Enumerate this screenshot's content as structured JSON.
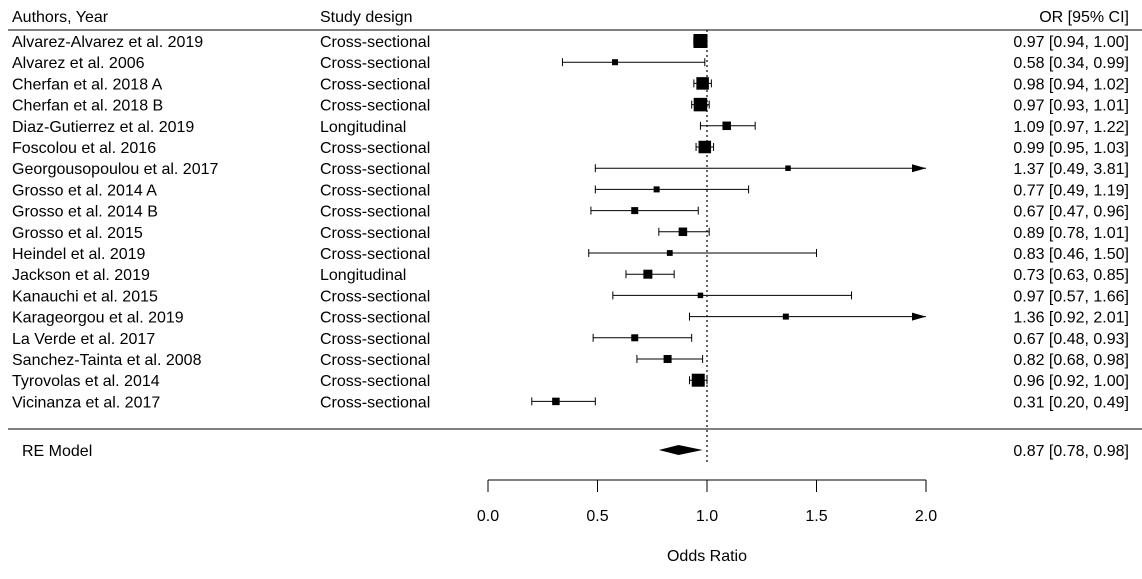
{
  "chart_data": {
    "type": "forest",
    "header": {
      "author": "Authors, Year",
      "design": "Study design",
      "or": "OR [95% CI]"
    },
    "studies": [
      {
        "author": "Alvarez-Alvarez et al. 2019",
        "design": "Cross-sectional",
        "or": 0.97,
        "lo": 0.94,
        "hi": 1.0,
        "ci_text": "0.97 [0.94, 1.00]",
        "weight": 1.0
      },
      {
        "author": "Alvarez et al. 2006",
        "design": "Cross-sectional",
        "or": 0.58,
        "lo": 0.34,
        "hi": 0.99,
        "ci_text": "0.58 [0.34, 0.99]",
        "weight": 0.2
      },
      {
        "author": "Cherfan et al. 2018 A",
        "design": "Cross-sectional",
        "or": 0.98,
        "lo": 0.94,
        "hi": 1.02,
        "ci_text": "0.98 [0.94, 1.02]",
        "weight": 0.85
      },
      {
        "author": "Cherfan et al. 2018 B",
        "design": "Cross-sectional",
        "or": 0.97,
        "lo": 0.93,
        "hi": 1.01,
        "ci_text": "0.97 [0.93, 1.01]",
        "weight": 0.95
      },
      {
        "author": "Diaz-Gutierrez et al. 2019",
        "design": "Longitudinal",
        "or": 1.09,
        "lo": 0.97,
        "hi": 1.22,
        "ci_text": "1.09 [0.97, 1.22]",
        "weight": 0.45
      },
      {
        "author": "Foscolou et al. 2016",
        "design": "Cross-sectional",
        "or": 0.99,
        "lo": 0.95,
        "hi": 1.03,
        "ci_text": "0.99 [0.95, 1.03]",
        "weight": 0.85
      },
      {
        "author": "Georgousopoulou et al. 2017",
        "design": "Cross-sectional",
        "or": 1.37,
        "lo": 0.49,
        "hi": 3.81,
        "ci_text": "1.37 [0.49, 3.81]",
        "weight": 0.15,
        "arrow": true
      },
      {
        "author": "Grosso et al. 2014 A",
        "design": "Cross-sectional",
        "or": 0.77,
        "lo": 0.49,
        "hi": 1.19,
        "ci_text": "0.77 [0.49, 1.19]",
        "weight": 0.2
      },
      {
        "author": "Grosso et al. 2014 B",
        "design": "Cross-sectional",
        "or": 0.67,
        "lo": 0.47,
        "hi": 0.96,
        "ci_text": "0.67 [0.47, 0.96]",
        "weight": 0.3
      },
      {
        "author": "Grosso et al. 2015",
        "design": "Cross-sectional",
        "or": 0.89,
        "lo": 0.78,
        "hi": 1.01,
        "ci_text": "0.89 [0.78, 1.01]",
        "weight": 0.45
      },
      {
        "author": "Heindel et al. 2019",
        "design": "Cross-sectional",
        "or": 0.83,
        "lo": 0.46,
        "hi": 1.5,
        "ci_text": "0.83 [0.46, 1.50]",
        "weight": 0.18
      },
      {
        "author": "Jackson et al. 2019",
        "design": "Longitudinal",
        "or": 0.73,
        "lo": 0.63,
        "hi": 0.85,
        "ci_text": "0.73 [0.63, 0.85]",
        "weight": 0.5
      },
      {
        "author": "Kanauchi et al. 2015",
        "design": "Cross-sectional",
        "or": 0.97,
        "lo": 0.57,
        "hi": 1.66,
        "ci_text": "0.97 [0.57, 1.66]",
        "weight": 0.15
      },
      {
        "author": "Karageorgou et al. 2019",
        "design": "Cross-sectional",
        "or": 1.36,
        "lo": 0.92,
        "hi": 2.01,
        "ci_text": "1.36 [0.92, 2.01]",
        "weight": 0.2,
        "arrow": true
      },
      {
        "author": "La Verde et al. 2017",
        "design": "Cross-sectional",
        "or": 0.67,
        "lo": 0.48,
        "hi": 0.93,
        "ci_text": "0.67 [0.48, 0.93]",
        "weight": 0.3
      },
      {
        "author": "Sanchez-Tainta et al. 2008",
        "design": "Cross-sectional",
        "or": 0.82,
        "lo": 0.68,
        "hi": 0.98,
        "ci_text": "0.82 [0.68, 0.98]",
        "weight": 0.4
      },
      {
        "author": "Tyrovolas et al. 2014",
        "design": "Cross-sectional",
        "or": 0.96,
        "lo": 0.92,
        "hi": 1.0,
        "ci_text": "0.96 [0.92, 1.00]",
        "weight": 0.9
      },
      {
        "author": "Vicinanza et al. 2017",
        "design": "Cross-sectional",
        "or": 0.31,
        "lo": 0.2,
        "hi": 0.49,
        "ci_text": "0.31 [0.20, 0.49]",
        "weight": 0.35
      }
    ],
    "summary": {
      "label": "RE Model",
      "or": 0.87,
      "lo": 0.78,
      "hi": 0.98,
      "ci_text": "0.87 [0.78, 0.98]"
    },
    "xlabel": "Odds Ratio",
    "xlim": [
      0.0,
      2.0
    ],
    "xticks": [
      "0.0",
      "0.5",
      "1.0",
      "1.5",
      "2.0"
    ],
    "reference_line": 1.0
  }
}
